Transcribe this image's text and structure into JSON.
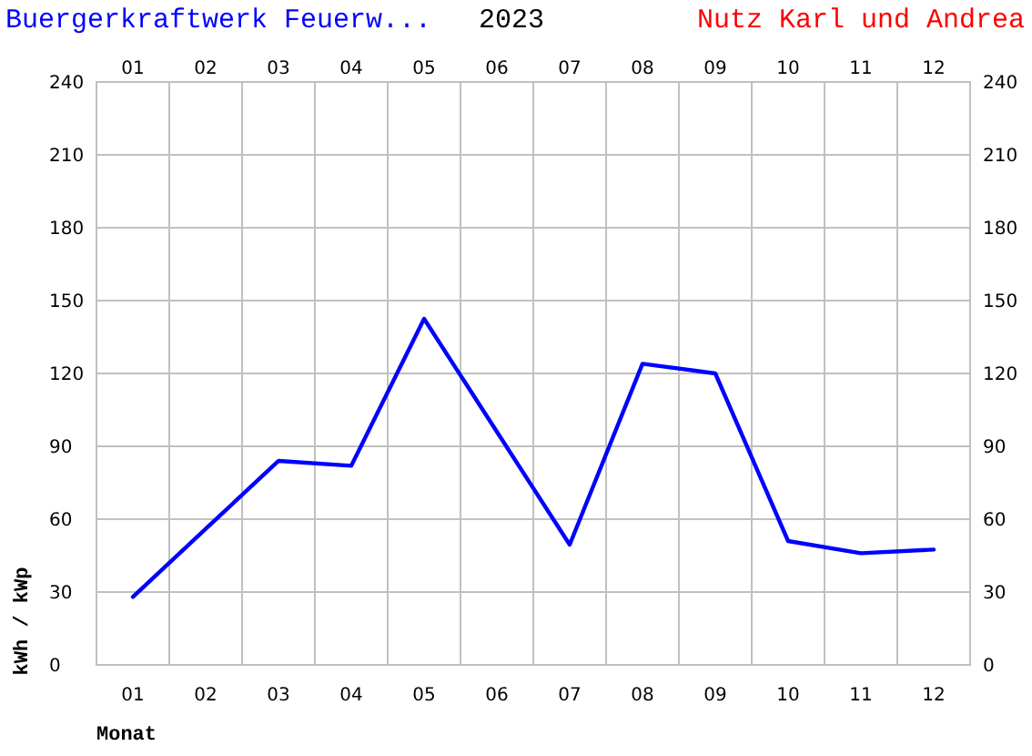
{
  "chart_data": {
    "type": "line",
    "title": "Buergerkraftwerk Feuerw...",
    "subtitle": "2023",
    "annotations": [
      "Nutz Karl und Andrea"
    ],
    "xlabel": "Monat",
    "ylabel": "kWh / kWp",
    "categories": [
      "01",
      "02",
      "03",
      "04",
      "05",
      "06",
      "07",
      "08",
      "09",
      "10",
      "11",
      "12"
    ],
    "series": [
      {
        "color": "#0000ff",
        "values": [
          28,
          56,
          84,
          82,
          142.5,
          96,
          49.5,
          124,
          120,
          51,
          46,
          47.5
        ]
      }
    ],
    "ylim": [
      0,
      240
    ],
    "yticks": [
      0,
      30,
      60,
      90,
      120,
      150,
      180,
      210,
      240
    ],
    "y2lim": [
      0,
      240
    ],
    "y2ticks": [
      0,
      30,
      60,
      90,
      120,
      150,
      180,
      210,
      240
    ],
    "grid": true,
    "marker": "none",
    "line_style": "solid"
  }
}
